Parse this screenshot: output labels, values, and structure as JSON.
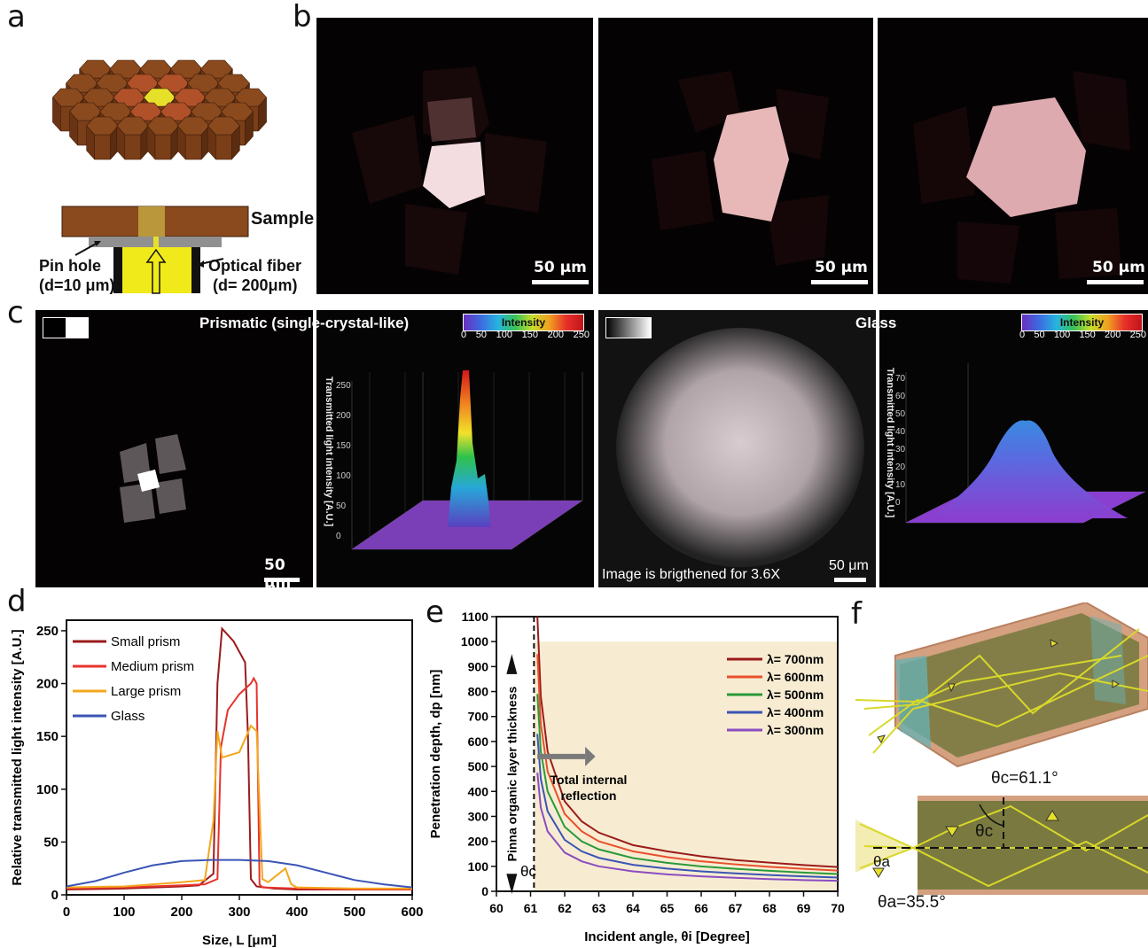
{
  "panel_labels": {
    "a": "a",
    "b": "b",
    "c": "c",
    "d": "d",
    "e": "e",
    "f": "f"
  },
  "panel_a": {
    "sample_label": "Sample",
    "pinhole_label": "Pin hole",
    "pinhole_d": "(d=10 μm)",
    "fiber_label": "Optical fiber",
    "fiber_d": "(d= 200μm)"
  },
  "panel_b": {
    "scale": "50 μm"
  },
  "panel_c": {
    "prismatic_title": "Prismatic (single-crystal-like)",
    "glass_title": "Glass",
    "intensity_label": "Intensity",
    "colorbar_ticks": [
      "0",
      "50",
      "100",
      "150",
      "200",
      "250"
    ],
    "scale": "50 μm",
    "zlabel": "Transmitted light intensity [A.U.]",
    "brightened_note": "Image is brigthened for 3.6X",
    "prismatic_zticks": [
      "0",
      "50",
      "100",
      "150",
      "200",
      "250"
    ],
    "glass_zticks": [
      "0",
      "10",
      "20",
      "30",
      "40",
      "50",
      "60",
      "70"
    ]
  },
  "chart_data": [
    {
      "type": "line",
      "panel": "d",
      "xlabel": "Size, L [μm]",
      "ylabel": "Relative transmitted light intensity [A.U.]",
      "xlim": [
        0,
        600
      ],
      "ylim": [
        0,
        260
      ],
      "xticks": [
        0,
        100,
        200,
        300,
        400,
        500,
        600
      ],
      "yticks": [
        0,
        50,
        100,
        150,
        200,
        250
      ],
      "legend_position": "top-left",
      "series": [
        {
          "name": "Small prism",
          "color": "#9b1b1b",
          "x": [
            0,
            100,
            200,
            230,
            255,
            262,
            270,
            290,
            300,
            310,
            315,
            320,
            330,
            360,
            400,
            500,
            600
          ],
          "y": [
            5,
            6,
            8,
            9,
            20,
            200,
            252,
            240,
            230,
            220,
            150,
            15,
            8,
            6,
            5,
            5,
            5
          ]
        },
        {
          "name": "Medium prism",
          "color": "#e8332c",
          "x": [
            0,
            100,
            200,
            240,
            262,
            268,
            280,
            300,
            320,
            325,
            330,
            335,
            340,
            400,
            500,
            600
          ],
          "y": [
            6,
            7,
            9,
            10,
            15,
            140,
            175,
            190,
            200,
            205,
            200,
            10,
            7,
            6,
            5,
            5
          ]
        },
        {
          "name": "Large prism",
          "color": "#f2a81d",
          "x": [
            0,
            100,
            200,
            240,
            255,
            262,
            270,
            300,
            320,
            330,
            340,
            350,
            380,
            390,
            400,
            500,
            600
          ],
          "y": [
            7,
            8,
            12,
            14,
            70,
            155,
            130,
            135,
            160,
            155,
            15,
            12,
            25,
            10,
            7,
            6,
            6
          ]
        },
        {
          "name": "Glass",
          "color": "#3b55b5",
          "x": [
            0,
            50,
            100,
            150,
            200,
            250,
            300,
            350,
            400,
            450,
            500,
            550,
            600
          ],
          "y": [
            8,
            13,
            21,
            28,
            32,
            33,
            33,
            32,
            28,
            21,
            14,
            10,
            7
          ]
        }
      ]
    },
    {
      "type": "line",
      "panel": "e",
      "xlabel": "Incident angle, θi [Degree]",
      "ylabel": "Penetration depth, dp [nm]",
      "xlim": [
        60,
        70
      ],
      "ylim": [
        0,
        1100
      ],
      "xticks": [
        60,
        61,
        62,
        63,
        64,
        65,
        66,
        67,
        68,
        69,
        70
      ],
      "yticks": [
        0,
        100,
        200,
        300,
        400,
        500,
        600,
        700,
        800,
        900,
        1000,
        1100
      ],
      "legend_position": "top-right",
      "critical_angle": 61.1,
      "shaded_region": {
        "x": [
          61.1,
          70
        ],
        "y": [
          0,
          1000
        ]
      },
      "annotation_tir": "Total internal reflection",
      "annotation_layer": "Pinna organic layer thickness",
      "annotation_theta_c": "θc",
      "series": [
        {
          "name": "λ= 700nm",
          "color": "#9b1b1b",
          "x": [
            61.2,
            61.3,
            61.5,
            62,
            62.5,
            63,
            64,
            65,
            66,
            67,
            68,
            69,
            70
          ],
          "y": [
            1100,
            780,
            560,
            360,
            280,
            235,
            185,
            160,
            140,
            125,
            115,
            105,
            97
          ]
        },
        {
          "name": "λ= 600nm",
          "color": "#e8502c",
          "x": [
            61.2,
            61.3,
            61.5,
            62,
            62.5,
            63,
            64,
            65,
            66,
            67,
            68,
            69,
            70
          ],
          "y": [
            950,
            670,
            480,
            310,
            240,
            200,
            160,
            137,
            120,
            108,
            98,
            90,
            83
          ]
        },
        {
          "name": "λ= 500nm",
          "color": "#2a9a3a",
          "x": [
            61.2,
            61.3,
            61.5,
            62,
            62.5,
            63,
            64,
            65,
            66,
            67,
            68,
            69,
            70
          ],
          "y": [
            790,
            560,
            400,
            258,
            200,
            168,
            133,
            114,
            100,
            90,
            82,
            75,
            69
          ]
        },
        {
          "name": "λ= 400nm",
          "color": "#3b55b5",
          "x": [
            61.2,
            61.3,
            61.5,
            62,
            62.5,
            63,
            64,
            65,
            66,
            67,
            68,
            69,
            70
          ],
          "y": [
            630,
            450,
            320,
            206,
            160,
            134,
            106,
            91,
            80,
            72,
            65,
            60,
            55
          ]
        },
        {
          "name": "λ= 300nm",
          "color": "#8a4cc0",
          "x": [
            61.2,
            61.3,
            61.5,
            62,
            62.5,
            63,
            64,
            65,
            66,
            67,
            68,
            69,
            70
          ],
          "y": [
            475,
            335,
            240,
            155,
            120,
            100,
            80,
            68,
            60,
            54,
            49,
            45,
            42
          ]
        }
      ]
    }
  ],
  "panel_f": {
    "theta_c_value": "θc=61.1°",
    "theta_c": "θc",
    "theta_a": "θa",
    "theta_a_value": "θa=35.5°"
  },
  "colors": {
    "prism": "#8a4a1e",
    "center": "#e6e02a",
    "panel_e_shade": "#f7ecd2"
  }
}
